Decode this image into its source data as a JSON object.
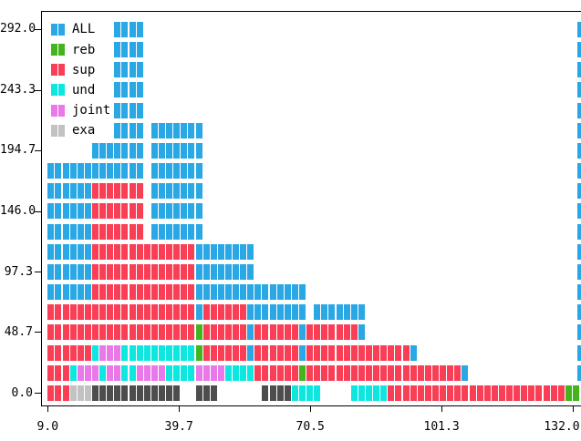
{
  "colors": {
    "ALL": "#2AA8E6",
    "reb": "#44B41E",
    "sup": "#F93E55",
    "und": "#0EE7E0",
    "joint": "#E979E9",
    "exa": "#C2C2C2",
    "dark": "#4D4D4D",
    "axis": "#000000",
    "background": "#FFFFFF"
  },
  "legend": [
    {
      "label": "ALL",
      "color_key": "ALL"
    },
    {
      "label": "reb",
      "color_key": "reb"
    },
    {
      "label": "sup",
      "color_key": "sup"
    },
    {
      "label": "und",
      "color_key": "und"
    },
    {
      "label": "joint",
      "color_key": "joint"
    },
    {
      "label": "exa",
      "color_key": "exa"
    }
  ],
  "chart_data": {
    "type": "bar",
    "subtype": "horizontal-brick-rows",
    "title": "",
    "xlabel": "",
    "ylabel": "",
    "grid": false,
    "legend_position": "upper-left",
    "x_axis": {
      "tick_values": [
        9.0,
        39.75,
        70.5,
        101.25,
        132.0
      ],
      "tick_labels": [
        "9.0",
        "39.7",
        "70.5",
        "101.3",
        "132.0"
      ],
      "range": [
        9.0,
        132.0
      ]
    },
    "y_axis": {
      "tick_values": [
        0.0,
        48.7,
        97.3,
        146.0,
        194.7,
        243.3,
        292.0
      ],
      "tick_labels": [
        "0.0",
        "48.7",
        "97.3",
        "146.0",
        "194.7",
        "243.3",
        "292.0"
      ],
      "range": [
        0.0,
        292.0
      ]
    },
    "slot_width_units": 1.732,
    "row_step_units": 16.22,
    "right_edge_marker_color": "ALL",
    "rows": [
      {
        "y": 0.0,
        "edge_marker": false,
        "runs": [
          [
            0,
            3,
            "sup"
          ],
          [
            3,
            3,
            "exa"
          ],
          [
            6,
            12,
            "dark"
          ],
          [
            20,
            3,
            "dark"
          ],
          [
            29,
            4,
            "dark"
          ],
          [
            33,
            4,
            "und"
          ],
          [
            41,
            5,
            "und"
          ],
          [
            46,
            24,
            "sup"
          ],
          [
            70,
            2,
            "reb"
          ]
        ]
      },
      {
        "y": 16.2,
        "edge_marker": true,
        "runs": [
          [
            0,
            3,
            "sup"
          ],
          [
            3,
            1,
            "und"
          ],
          [
            4,
            3,
            "joint"
          ],
          [
            7,
            1,
            "und"
          ],
          [
            8,
            2,
            "joint"
          ],
          [
            10,
            2,
            "und"
          ],
          [
            12,
            4,
            "joint"
          ],
          [
            16,
            4,
            "und"
          ],
          [
            20,
            4,
            "joint"
          ],
          [
            24,
            4,
            "und"
          ],
          [
            28,
            6,
            "sup"
          ],
          [
            34,
            1,
            "reb"
          ],
          [
            35,
            21,
            "sup"
          ],
          [
            56,
            1,
            "ALL"
          ]
        ]
      },
      {
        "y": 32.4,
        "edge_marker": true,
        "runs": [
          [
            0,
            6,
            "sup"
          ],
          [
            6,
            1,
            "und"
          ],
          [
            7,
            3,
            "joint"
          ],
          [
            10,
            10,
            "und"
          ],
          [
            20,
            1,
            "reb"
          ],
          [
            21,
            6,
            "sup"
          ],
          [
            27,
            1,
            "ALL"
          ],
          [
            28,
            6,
            "sup"
          ],
          [
            34,
            1,
            "ALL"
          ],
          [
            35,
            14,
            "sup"
          ],
          [
            49,
            1,
            "ALL"
          ]
        ]
      },
      {
        "y": 48.7,
        "edge_marker": true,
        "runs": [
          [
            0,
            20,
            "sup"
          ],
          [
            20,
            1,
            "reb"
          ],
          [
            21,
            6,
            "sup"
          ],
          [
            27,
            1,
            "ALL"
          ],
          [
            28,
            6,
            "sup"
          ],
          [
            34,
            1,
            "ALL"
          ],
          [
            35,
            7,
            "sup"
          ],
          [
            42,
            1,
            "ALL"
          ]
        ]
      },
      {
        "y": 64.9,
        "edge_marker": true,
        "runs": [
          [
            0,
            20,
            "sup"
          ],
          [
            20,
            1,
            "ALL"
          ],
          [
            21,
            6,
            "sup"
          ],
          [
            27,
            8,
            "ALL"
          ],
          [
            36,
            7,
            "ALL"
          ]
        ]
      },
      {
        "y": 81.1,
        "edge_marker": true,
        "runs": [
          [
            0,
            6,
            "ALL"
          ],
          [
            6,
            14,
            "sup"
          ],
          [
            20,
            15,
            "ALL"
          ]
        ]
      },
      {
        "y": 97.3,
        "edge_marker": true,
        "runs": [
          [
            0,
            6,
            "ALL"
          ],
          [
            6,
            14,
            "sup"
          ],
          [
            20,
            8,
            "ALL"
          ]
        ]
      },
      {
        "y": 113.6,
        "edge_marker": true,
        "runs": [
          [
            0,
            6,
            "ALL"
          ],
          [
            6,
            14,
            "sup"
          ],
          [
            20,
            8,
            "ALL"
          ]
        ]
      },
      {
        "y": 129.8,
        "edge_marker": true,
        "runs": [
          [
            0,
            6,
            "ALL"
          ],
          [
            6,
            7,
            "sup"
          ],
          [
            14,
            7,
            "ALL"
          ]
        ]
      },
      {
        "y": 146.0,
        "edge_marker": true,
        "runs": [
          [
            0,
            6,
            "ALL"
          ],
          [
            6,
            7,
            "sup"
          ],
          [
            14,
            7,
            "ALL"
          ]
        ]
      },
      {
        "y": 162.2,
        "edge_marker": true,
        "runs": [
          [
            0,
            6,
            "ALL"
          ],
          [
            6,
            7,
            "sup"
          ],
          [
            14,
            7,
            "ALL"
          ]
        ]
      },
      {
        "y": 178.4,
        "edge_marker": true,
        "runs": [
          [
            0,
            13,
            "ALL"
          ],
          [
            14,
            7,
            "ALL"
          ]
        ]
      },
      {
        "y": 194.7,
        "edge_marker": true,
        "runs": [
          [
            6,
            7,
            "ALL"
          ],
          [
            14,
            7,
            "ALL"
          ]
        ]
      },
      {
        "y": 210.9,
        "edge_marker": true,
        "runs": [
          [
            9,
            4,
            "ALL"
          ],
          [
            14,
            7,
            "ALL"
          ]
        ]
      },
      {
        "y": 227.1,
        "edge_marker": true,
        "runs": [
          [
            9,
            4,
            "ALL"
          ]
        ]
      },
      {
        "y": 243.3,
        "edge_marker": true,
        "runs": [
          [
            9,
            4,
            "ALL"
          ]
        ]
      },
      {
        "y": 259.6,
        "edge_marker": true,
        "runs": [
          [
            9,
            4,
            "ALL"
          ]
        ]
      },
      {
        "y": 275.8,
        "edge_marker": true,
        "runs": [
          [
            9,
            4,
            "ALL"
          ]
        ]
      },
      {
        "y": 292.0,
        "edge_marker": true,
        "runs": [
          [
            9,
            4,
            "ALL"
          ]
        ]
      }
    ]
  }
}
